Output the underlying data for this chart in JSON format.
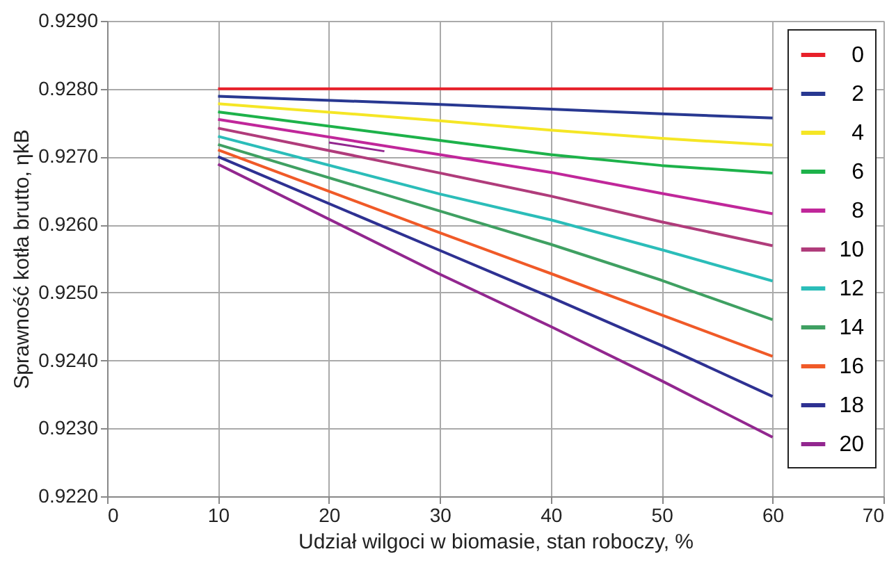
{
  "chart_data": {
    "type": "line",
    "xlabel": "Udział wilgoci w biomasie, stan roboczy, %",
    "ylabel": "Sprawność kotła brutto, ηkB",
    "xlim": [
      0,
      70
    ],
    "xticks": [
      0,
      10,
      20,
      30,
      40,
      50,
      60,
      70
    ],
    "ylim": [
      0.922,
      0.929
    ],
    "yticks": [
      {
        "value": 0.922,
        "label": "0.9220"
      },
      {
        "value": 0.923,
        "label": "0.9230"
      },
      {
        "value": 0.924,
        "label": "0.9240"
      },
      {
        "value": 0.925,
        "label": "0.9250"
      },
      {
        "value": 0.926,
        "label": "0.9260"
      },
      {
        "value": 0.927,
        "label": "0.9270"
      },
      {
        "value": 0.928,
        "label": "0.9280"
      },
      {
        "value": 0.929,
        "label": "0.9290"
      }
    ],
    "grid": true,
    "legend": "top right",
    "marker": "none",
    "line_style": "solid",
    "x": [
      10,
      30,
      40,
      50,
      60
    ],
    "series": [
      {
        "name": "0",
        "color": "#e8202a",
        "values": [
          0.928,
          0.928,
          0.928,
          0.928,
          0.928
        ]
      },
      {
        "name": "2",
        "color": "#283891",
        "values": [
          0.92789,
          0.92777,
          0.9277,
          0.92763,
          0.92757
        ]
      },
      {
        "name": "4",
        "color": "#f5e625",
        "values": [
          0.92778,
          0.92753,
          0.92739,
          0.92727,
          0.92717
        ]
      },
      {
        "name": "6",
        "color": "#1db24a",
        "values": [
          0.92766,
          0.92724,
          0.92703,
          0.92687,
          0.92676
        ]
      },
      {
        "name": "8",
        "color": "#c0279a",
        "values": [
          0.92755,
          0.92703,
          0.92677,
          0.92646,
          0.92616
        ]
      },
      {
        "name": "10",
        "color": "#b03c7b",
        "values": [
          0.92742,
          0.92676,
          0.92642,
          0.92604,
          0.92569
        ]
      },
      {
        "name": "12",
        "color": "#2bbdb9",
        "values": [
          0.9273,
          0.92645,
          0.92607,
          0.92563,
          0.92517
        ]
      },
      {
        "name": "14",
        "color": "#3fa062",
        "values": [
          0.92718,
          0.9262,
          0.92571,
          0.92518,
          0.9246
        ]
      },
      {
        "name": "16",
        "color": "#f05a28",
        "values": [
          0.9271,
          0.92588,
          0.92528,
          0.92467,
          0.92406
        ]
      },
      {
        "name": "18",
        "color": "#2e3192",
        "values": [
          0.927,
          0.92562,
          0.92493,
          0.92422,
          0.92347
        ]
      },
      {
        "name": "20",
        "color": "#92278f",
        "values": [
          0.92689,
          0.92527,
          0.9245,
          0.9237,
          0.92287
        ]
      },
      {
        "color": "#92278f",
        "x": [
          20,
          25
        ],
        "values": [
          0.92721,
          0.92708
        ]
      }
    ]
  }
}
